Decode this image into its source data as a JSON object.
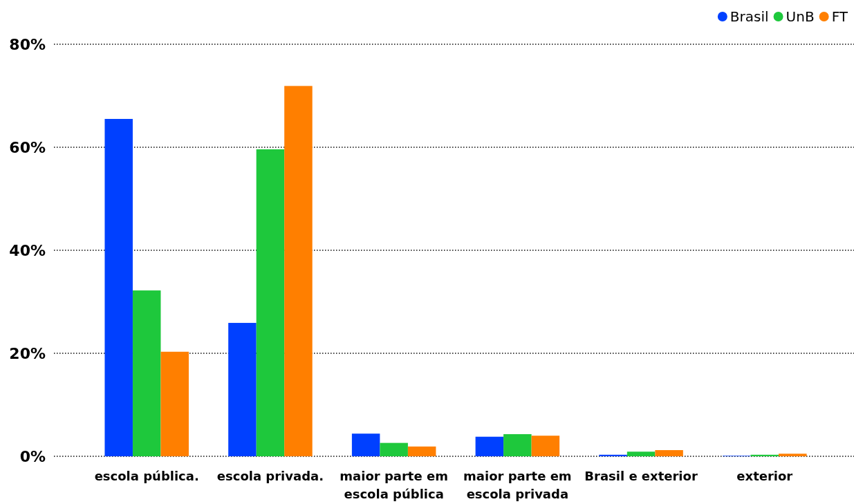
{
  "chart_data": {
    "type": "bar",
    "categories": [
      "escola pública.",
      "escola privada.",
      "maior parte em escola pública",
      "maior parte em escola privada",
      "Brasil e exterior",
      "exterior"
    ],
    "series": [
      {
        "name": "Brasil",
        "color": "#0040ff",
        "values": [
          65.5,
          25.9,
          4.4,
          3.8,
          0.3,
          0.1
        ]
      },
      {
        "name": "UnB",
        "color": "#1ec83c",
        "values": [
          32.2,
          59.6,
          2.6,
          4.3,
          0.9,
          0.3
        ]
      },
      {
        "name": "FT",
        "color": "#ff7f00",
        "values": [
          20.3,
          71.9,
          1.9,
          4.0,
          1.2,
          0.5
        ]
      }
    ],
    "ylim": [
      0,
      80
    ],
    "yticks": [
      {
        "value": 0,
        "label": "0%"
      },
      {
        "value": 20,
        "label": "20%"
      },
      {
        "value": 40,
        "label": "40%"
      },
      {
        "value": 60,
        "label": "60%"
      },
      {
        "value": 80,
        "label": "80%"
      }
    ],
    "grid": "y",
    "legend": "top right",
    "marker": "circle"
  }
}
